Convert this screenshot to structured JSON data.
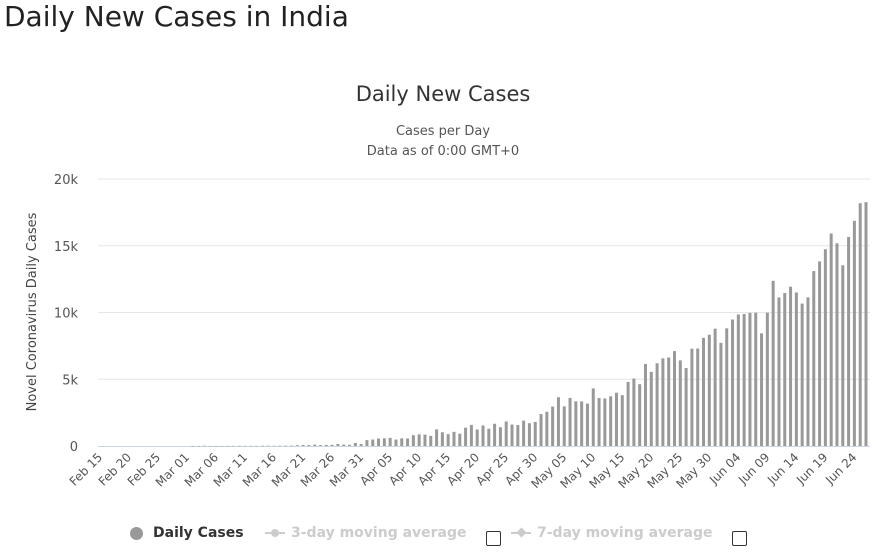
{
  "page_title": "Daily New Cases in India",
  "chart_data": {
    "type": "bar",
    "title": "Daily New Cases",
    "subtitle": [
      "Cases per Day",
      "Data as of 0:00 GMT+0"
    ],
    "ylabel": "Novel Coronavirus Daily Cases",
    "xlabel": "",
    "ylim": [
      0,
      20000
    ],
    "y_ticks": [
      "0",
      "5k",
      "10k",
      "15k",
      "20k"
    ],
    "y_tick_values": [
      0,
      5000,
      10000,
      15000,
      20000
    ],
    "x_ticks": [
      "Feb 15",
      "Feb 20",
      "Feb 25",
      "Mar 01",
      "Mar 06",
      "Mar 11",
      "Mar 16",
      "Mar 21",
      "Mar 26",
      "Mar 31",
      "Apr 05",
      "Apr 10",
      "Apr 15",
      "Apr 20",
      "Apr 25",
      "Apr 30",
      "May 05",
      "May 10",
      "May 15",
      "May 20",
      "May 25",
      "May 30",
      "Jun 04",
      "Jun 09",
      "Jun 14",
      "Jun 19",
      "Jun 24"
    ],
    "grid": true,
    "bar_color": "#999999",
    "start_date": "Feb 15",
    "end_date": "Jun 26",
    "series": [
      {
        "name": "Daily Cases",
        "values": [
          0,
          0,
          0,
          0,
          0,
          0,
          0,
          0,
          0,
          0,
          0,
          0,
          0,
          0,
          0,
          0,
          2,
          1,
          22,
          2,
          1,
          3,
          5,
          9,
          15,
          8,
          10,
          8,
          21,
          23,
          12,
          23,
          25,
          26,
          58,
          79,
          69,
          102,
          64,
          80,
          87,
          149,
          106,
          92,
          227,
          146,
          437,
          486,
          560,
          579,
          609,
          484,
          573,
          565,
          813,
          871,
          854,
          758,
          1243,
          1031,
          886,
          1061,
          922,
          1371,
          1580,
          1239,
          1537,
          1292,
          1667,
          1408,
          1835,
          1607,
          1568,
          1902,
          1705,
          1801,
          2396,
          2564,
          2952,
          3656,
          2971,
          3602,
          3344,
          3339,
          3175,
          4311,
          3592,
          3562,
          3726,
          3991,
          3808,
          4794,
          5050,
          4630,
          6147,
          5553,
          6198,
          6568,
          6629,
          7111,
          6414,
          5843,
          7293,
          7300,
          8105,
          8336,
          8789,
          7723,
          8812,
          9472,
          9851,
          9887,
          9971,
          9983,
          8442,
          9985,
          12375,
          11128,
          11458,
          11929,
          11502,
          10667,
          11135,
          13103,
          13827,
          14740,
          15915,
          15183,
          13540,
          15656,
          16868,
          18185,
          18263
        ]
      }
    ],
    "legend": {
      "position": "bottom",
      "items": [
        {
          "label": "Daily Cases",
          "active": true,
          "color": "#999999"
        },
        {
          "label": "3-day moving average",
          "active": false,
          "color": "#cccccc"
        },
        {
          "label": "7-day moving average",
          "active": false,
          "color": "#cccccc"
        }
      ]
    }
  }
}
